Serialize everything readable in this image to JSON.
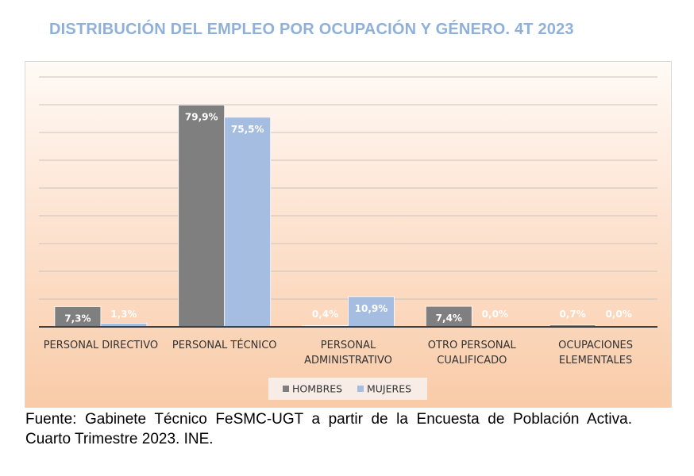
{
  "title": "DISTRIBUCIÓN DEL EMPLEO POR OCUPACIÓN Y GÉNERO. 4T 2023",
  "source": "Fuente: Gabinete Técnico FeSMC-UGT a partir de la Encuesta de Población Activa. Cuarto Trimestre 2023. INE.",
  "colors": {
    "hombres": "#7f7f7f",
    "mujeres": "#a4bde1",
    "title": "#8fb0d8"
  },
  "chart_data": {
    "type": "bar",
    "title": "DISTRIBUCIÓN DEL EMPLEO POR OCUPACIÓN Y GÉNERO. 4T 2023",
    "categories": [
      [
        "PERSONAL DIRECTIVO"
      ],
      [
        "PERSONAL TÉCNICO"
      ],
      [
        "PERSONAL",
        "ADMINISTRATIVO"
      ],
      [
        "OTRO PERSONAL",
        "CUALIFICADO"
      ],
      [
        "OCUPACIONES",
        "ELEMENTALES"
      ]
    ],
    "series": [
      {
        "name": "HOMBRES",
        "values": [
          7.3,
          79.9,
          0.4,
          7.4,
          0.7
        ],
        "labels": [
          "7,3%",
          "79,9%",
          "0,4%",
          "7,4%",
          "0,7%"
        ]
      },
      {
        "name": "MUJERES",
        "values": [
          1.3,
          75.5,
          10.9,
          0.0,
          0.0
        ],
        "labels": [
          "1,3%",
          "75,5%",
          "10,9%",
          "0,0%",
          "0,0%"
        ]
      }
    ],
    "ylim": [
      0,
      90
    ],
    "grid": true,
    "legend": "bottom"
  }
}
